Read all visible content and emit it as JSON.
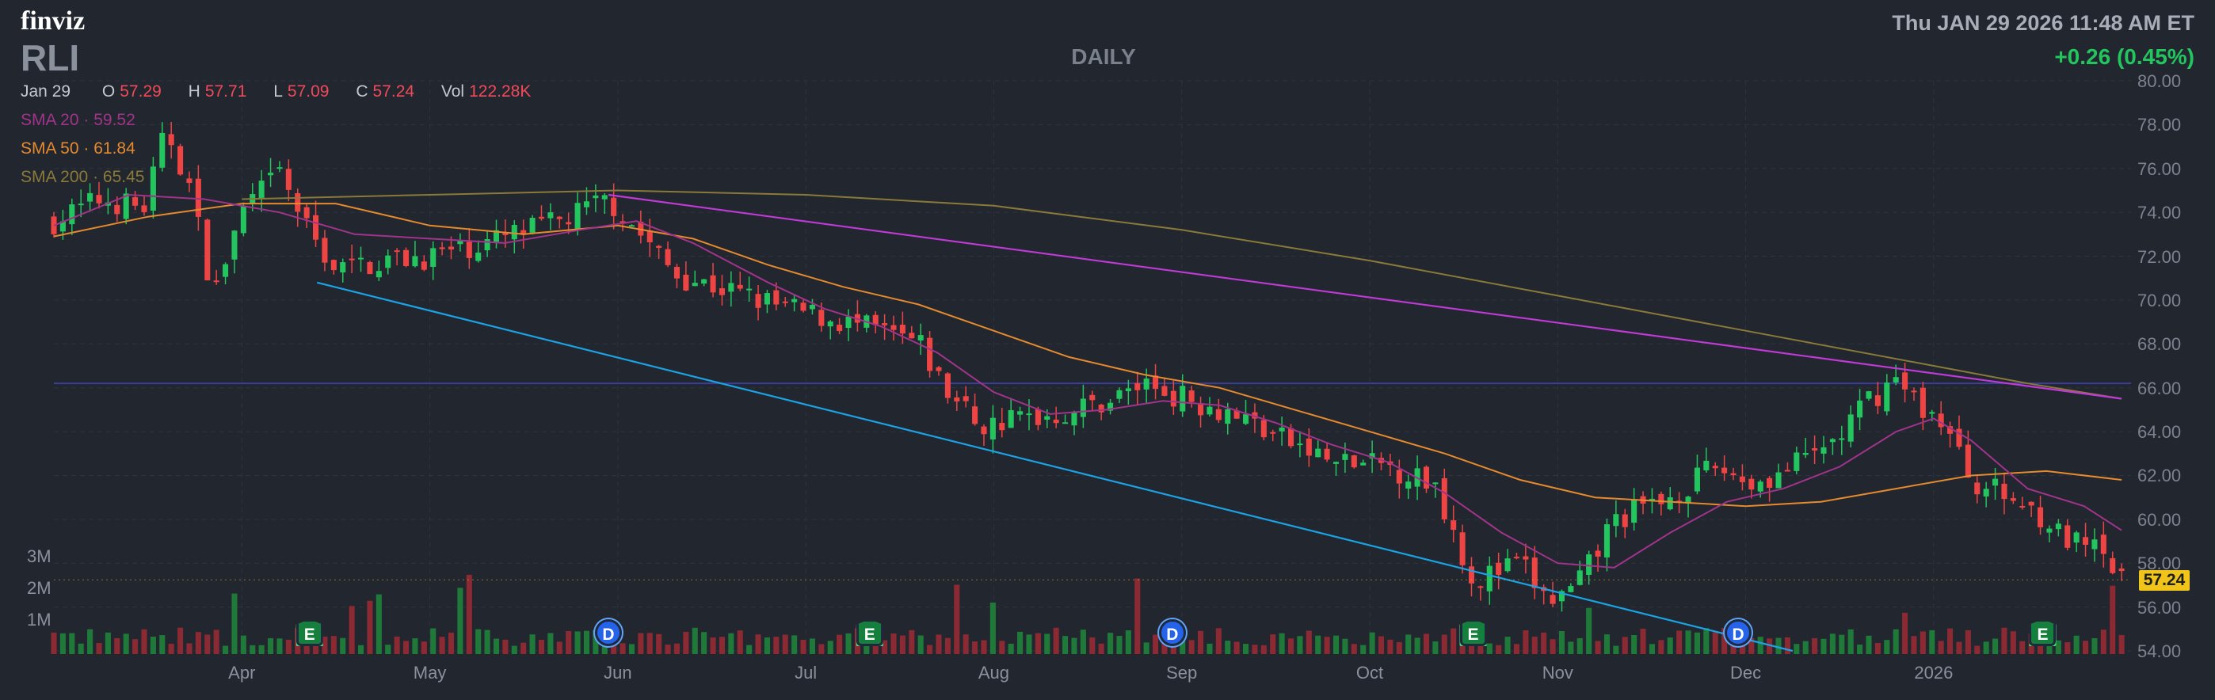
{
  "header": {
    "logo": "finviz",
    "ticker": "RLI",
    "period": "DAILY",
    "datetime": "Thu JAN 29 2026 11:48 AM ET",
    "change": "+0.26 (0.45%)"
  },
  "ohlc": {
    "date": "Jan 29",
    "open_label": "O",
    "open": "57.29",
    "high_label": "H",
    "high": "57.71",
    "low_label": "L",
    "low": "57.09",
    "close_label": "C",
    "close": "57.24",
    "vol_label": "Vol",
    "vol": "122.28K"
  },
  "sma": [
    {
      "label": "SMA 20",
      "value": "59.52",
      "color": "#a0348a"
    },
    {
      "label": "SMA 50",
      "value": "61.84",
      "color": "#e58a2e"
    },
    {
      "label": "SMA 200",
      "value": "65.45",
      "color": "#8a7a3a"
    }
  ],
  "last_price_tag": "57.24",
  "events": [
    {
      "type": "earnings",
      "letter": "E",
      "month_pos": 4.36
    },
    {
      "type": "dividend",
      "letter": "D",
      "month_pos": 5.95
    },
    {
      "type": "earnings",
      "letter": "E",
      "month_pos": 7.34
    },
    {
      "type": "dividend",
      "letter": "D",
      "month_pos": 8.95
    },
    {
      "type": "earnings",
      "letter": "E",
      "month_pos": 10.55
    },
    {
      "type": "dividend",
      "letter": "D",
      "month_pos": 11.96
    },
    {
      "type": "earnings",
      "letter": "E",
      "month_pos": 13.58
    }
  ],
  "colors": {
    "up": "#22c55e",
    "down": "#ef4444",
    "vol_up": "#1f7a3a",
    "vol_down": "#8b2a33",
    "trend_upper": "#c03ad6",
    "trend_lower": "#1ba3e6",
    "hline": "#3b3f9a"
  },
  "chart_data": {
    "type": "candlestick",
    "title": "RLI",
    "x_unit": "month (3 = Mar 2025, 13 = Jan 2026)",
    "ylim": [
      54,
      80
    ],
    "y_ticks": [
      "54.00",
      "56.00",
      "58.00",
      "60.00",
      "62.00",
      "64.00",
      "66.00",
      "68.00",
      "70.00",
      "72.00",
      "74.00",
      "76.00",
      "78.00",
      "80.00"
    ],
    "x_ticks": [
      {
        "label": "Apr",
        "pos": 4
      },
      {
        "label": "May",
        "pos": 5
      },
      {
        "label": "Jun",
        "pos": 6
      },
      {
        "label": "Jul",
        "pos": 7
      },
      {
        "label": "Aug",
        "pos": 8
      },
      {
        "label": "Sep",
        "pos": 9
      },
      {
        "label": "Oct",
        "pos": 10
      },
      {
        "label": "Nov",
        "pos": 11
      },
      {
        "label": "Dec",
        "pos": 12
      },
      {
        "label": "2026",
        "pos": 13
      }
    ],
    "volume_ticks": [
      "1M",
      "2M",
      "3M"
    ],
    "volume_range_millions": [
      0,
      3.5
    ],
    "close_path": [
      [
        3.0,
        73.6
      ],
      [
        3.25,
        74.6
      ],
      [
        3.48,
        74.2
      ],
      [
        3.6,
        77.8
      ],
      [
        3.72,
        75.2
      ],
      [
        3.85,
        70.2
      ],
      [
        4.0,
        74.0
      ],
      [
        4.2,
        75.8
      ],
      [
        4.35,
        73.2
      ],
      [
        4.5,
        71.4
      ],
      [
        4.75,
        71.8
      ],
      [
        5.0,
        72.0
      ],
      [
        5.3,
        72.6
      ],
      [
        5.7,
        73.6
      ],
      [
        5.95,
        74.6
      ],
      [
        6.1,
        73.2
      ],
      [
        6.3,
        71.2
      ],
      [
        6.6,
        70.4
      ],
      [
        6.9,
        69.6
      ],
      [
        7.2,
        69.0
      ],
      [
        7.45,
        68.4
      ],
      [
        7.6,
        68.0
      ],
      [
        7.75,
        65.8
      ],
      [
        7.95,
        64.2
      ],
      [
        8.1,
        64.6
      ],
      [
        8.35,
        64.8
      ],
      [
        8.6,
        65.4
      ],
      [
        8.8,
        66.2
      ],
      [
        9.0,
        65.6
      ],
      [
        9.3,
        64.8
      ],
      [
        9.55,
        63.6
      ],
      [
        9.8,
        62.6
      ],
      [
        10.1,
        62.4
      ],
      [
        10.35,
        61.6
      ],
      [
        10.45,
        59.4
      ],
      [
        10.55,
        57.2
      ],
      [
        10.8,
        58.0
      ],
      [
        10.95,
        56.2
      ],
      [
        11.1,
        56.8
      ],
      [
        11.3,
        60.0
      ],
      [
        11.55,
        60.8
      ],
      [
        11.85,
        62.4
      ],
      [
        12.05,
        61.6
      ],
      [
        12.3,
        62.6
      ],
      [
        12.5,
        63.8
      ],
      [
        12.65,
        65.4
      ],
      [
        12.8,
        66.4
      ],
      [
        12.9,
        65.4
      ],
      [
        13.05,
        64.4
      ],
      [
        13.2,
        61.8
      ],
      [
        13.35,
        61.2
      ],
      [
        13.55,
        60.4
      ],
      [
        13.7,
        59.0
      ],
      [
        13.85,
        58.6
      ],
      [
        14.0,
        57.2
      ]
    ],
    "sma20": [
      [
        3.0,
        73.4
      ],
      [
        3.4,
        74.8
      ],
      [
        3.8,
        74.6
      ],
      [
        4.2,
        74.0
      ],
      [
        4.6,
        73.0
      ],
      [
        5.0,
        72.8
      ],
      [
        5.4,
        72.6
      ],
      [
        5.8,
        73.2
      ],
      [
        6.1,
        73.6
      ],
      [
        6.4,
        72.6
      ],
      [
        6.8,
        70.8
      ],
      [
        7.1,
        69.6
      ],
      [
        7.4,
        68.8
      ],
      [
        7.7,
        67.6
      ],
      [
        8.0,
        65.8
      ],
      [
        8.3,
        64.8
      ],
      [
        8.6,
        65.0
      ],
      [
        8.9,
        65.4
      ],
      [
        9.2,
        65.2
      ],
      [
        9.5,
        64.4
      ],
      [
        9.8,
        63.4
      ],
      [
        10.1,
        62.6
      ],
      [
        10.4,
        61.2
      ],
      [
        10.7,
        59.4
      ],
      [
        11.0,
        58.0
      ],
      [
        11.3,
        57.8
      ],
      [
        11.6,
        59.4
      ],
      [
        11.9,
        60.8
      ],
      [
        12.2,
        61.4
      ],
      [
        12.5,
        62.4
      ],
      [
        12.8,
        64.0
      ],
      [
        13.0,
        64.6
      ],
      [
        13.2,
        63.6
      ],
      [
        13.5,
        61.4
      ],
      [
        13.8,
        60.6
      ],
      [
        14.0,
        59.5
      ]
    ],
    "sma50": [
      [
        3.0,
        72.9
      ],
      [
        3.5,
        73.8
      ],
      [
        4.0,
        74.4
      ],
      [
        4.5,
        74.4
      ],
      [
        5.0,
        73.4
      ],
      [
        5.5,
        73.0
      ],
      [
        6.0,
        73.4
      ],
      [
        6.4,
        72.8
      ],
      [
        6.8,
        71.6
      ],
      [
        7.2,
        70.6
      ],
      [
        7.6,
        69.8
      ],
      [
        8.0,
        68.6
      ],
      [
        8.4,
        67.4
      ],
      [
        8.8,
        66.6
      ],
      [
        9.2,
        66.0
      ],
      [
        9.6,
        65.0
      ],
      [
        10.0,
        64.0
      ],
      [
        10.4,
        63.0
      ],
      [
        10.8,
        61.8
      ],
      [
        11.2,
        61.0
      ],
      [
        11.6,
        60.8
      ],
      [
        12.0,
        60.6
      ],
      [
        12.4,
        60.8
      ],
      [
        12.8,
        61.4
      ],
      [
        13.2,
        62.0
      ],
      [
        13.6,
        62.2
      ],
      [
        14.0,
        61.8
      ]
    ],
    "sma200": [
      [
        4.0,
        74.6
      ],
      [
        5.0,
        74.8
      ],
      [
        6.0,
        75.0
      ],
      [
        7.0,
        74.8
      ],
      [
        8.0,
        74.3
      ],
      [
        9.0,
        73.2
      ],
      [
        10.0,
        71.8
      ],
      [
        11.0,
        70.2
      ],
      [
        12.0,
        68.6
      ],
      [
        13.0,
        67.0
      ],
      [
        13.5,
        66.2
      ],
      [
        14.0,
        65.5
      ]
    ],
    "trendlines": [
      {
        "name": "upper",
        "from": [
          5.95,
          74.8
        ],
        "to": [
          14.0,
          65.5
        ]
      },
      {
        "name": "lower",
        "from": [
          4.4,
          70.8
        ],
        "to": [
          12.25,
          54.0
        ]
      }
    ],
    "horizontal_line": 66.2,
    "last_close": 57.24
  }
}
